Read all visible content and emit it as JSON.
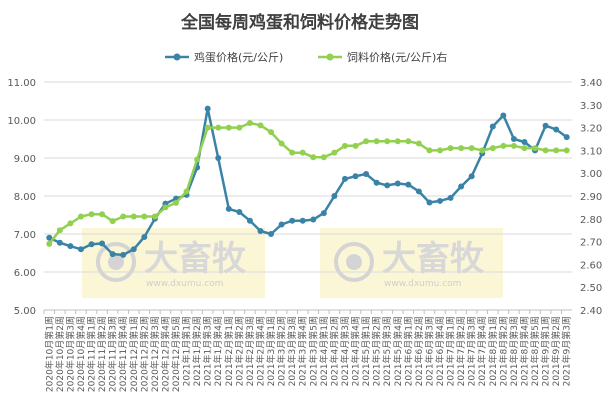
{
  "chart_data": {
    "type": "line",
    "title": "全国每周鸡蛋和饲料价格走势图",
    "categories": [
      "2020年10月第1周",
      "2020年10月第2周",
      "2020年10月第3周",
      "2020年10月第4周",
      "2020年11月第1周",
      "2020年11月第2周",
      "2020年11月第3周",
      "2020年11月第4周",
      "2020年12月第1周",
      "2020年12月第2周",
      "2020年12月第3周",
      "2020年12月第4周",
      "2020年12月第5周",
      "2021年1月第1周",
      "2021年1月第2周",
      "2021年1月第3周",
      "2021年1月第4周",
      "2021年2月第1周",
      "2021年2月第2周",
      "2021年2月第3周",
      "2021年2月第4周",
      "2021年3月第1周",
      "2021年3月第2周",
      "2021年3月第3周",
      "2021年3月第4周",
      "2021年3月第5周",
      "2021年4月第1周",
      "2021年4月第2周",
      "2021年4月第3周",
      "2021年4月第4周",
      "2021年5月第1周",
      "2021年5月第2周",
      "2021年5月第3周",
      "2021年5月第4周",
      "2021年6月第1周",
      "2021年6月第2周",
      "2021年6月第3周",
      "2021年6月第4周",
      "2021年7月第1周",
      "2021年7月第2周",
      "2021年7月第3周",
      "2021年7月第4周",
      "2021年8月第1周",
      "2021年8月第2周",
      "2021年8月第3周",
      "2021年8月第4周",
      "2021年8月第5周",
      "2021年9月第1周",
      "2021年9月第2周",
      "2021年9月第3周"
    ],
    "series": [
      {
        "name": "鸡蛋价格(元/公斤)",
        "axis": "left",
        "color": "#3b83a6",
        "values": [
          6.9,
          6.77,
          6.68,
          6.6,
          6.73,
          6.75,
          6.47,
          6.45,
          6.6,
          6.92,
          7.4,
          7.8,
          7.93,
          8.03,
          8.75,
          10.3,
          9.0,
          7.66,
          7.58,
          7.35,
          7.08,
          7.0,
          7.25,
          7.35,
          7.35,
          7.38,
          7.55,
          8.0,
          8.45,
          8.52,
          8.58,
          8.35,
          8.28,
          8.33,
          8.3,
          8.12,
          7.83,
          7.87,
          7.95,
          8.25,
          8.52,
          9.12,
          9.83,
          10.12,
          9.5,
          9.42,
          9.2,
          9.85,
          9.75,
          9.55
        ]
      },
      {
        "name": "饲料价格(元/公斤)右",
        "axis": "right",
        "color": "#92d050",
        "values": [
          2.69,
          2.75,
          2.78,
          2.81,
          2.82,
          2.82,
          2.79,
          2.81,
          2.81,
          2.81,
          2.81,
          2.85,
          2.87,
          2.92,
          3.06,
          3.2,
          3.2,
          3.2,
          3.2,
          3.22,
          3.21,
          3.18,
          3.13,
          3.09,
          3.09,
          3.07,
          3.07,
          3.09,
          3.12,
          3.12,
          3.14,
          3.14,
          3.14,
          3.14,
          3.14,
          3.13,
          3.1,
          3.1,
          3.11,
          3.11,
          3.11,
          3.1,
          3.11,
          3.12,
          3.12,
          3.11,
          3.11,
          3.1,
          3.1,
          3.1
        ]
      }
    ],
    "ylim": [
      5.0,
      11.0
    ],
    "yticks": [
      "5.00",
      "6.00",
      "7.00",
      "8.00",
      "9.00",
      "10.00",
      "11.00"
    ],
    "y2lim": [
      2.4,
      3.4
    ],
    "y2ticks": [
      "2.40",
      "2.50",
      "2.60",
      "2.70",
      "2.80",
      "2.90",
      "3.00",
      "3.10",
      "3.20",
      "3.30",
      "3.40"
    ],
    "legend_position": "top",
    "grid": true,
    "watermark": "大畜牧",
    "watermark_url": "www.dxumu.com"
  }
}
